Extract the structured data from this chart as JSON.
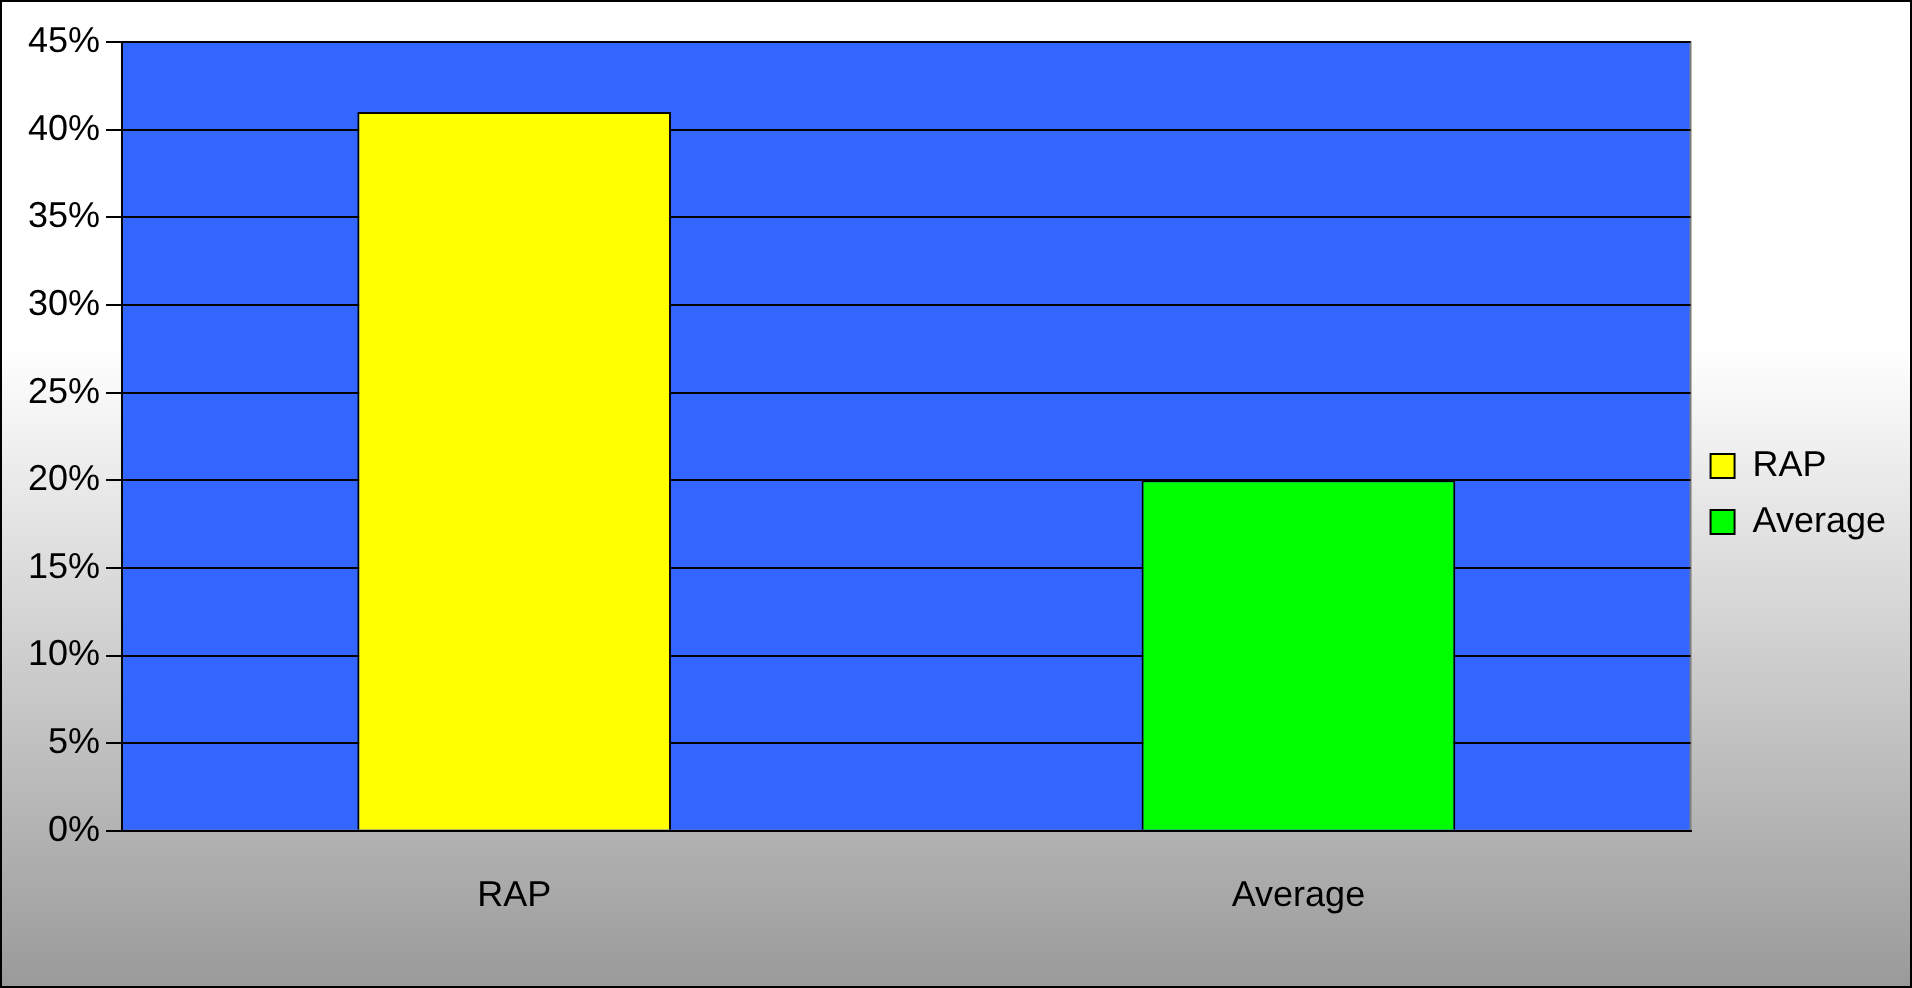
{
  "chart_data": {
    "type": "bar",
    "categories": [
      "RAP",
      "Average"
    ],
    "series": [
      {
        "name": "RAP",
        "color": "#ffff00",
        "values": [
          41,
          null
        ]
      },
      {
        "name": "Average",
        "color": "#00ff00",
        "values": [
          null,
          20
        ]
      }
    ],
    "ylim": [
      0,
      45
    ],
    "yticks": [
      {
        "value": 0,
        "label": "0%"
      },
      {
        "value": 5,
        "label": "5%"
      },
      {
        "value": 10,
        "label": "10%"
      },
      {
        "value": 15,
        "label": "15%"
      },
      {
        "value": 20,
        "label": "20%"
      },
      {
        "value": 25,
        "label": "25%"
      },
      {
        "value": 30,
        "label": "30%"
      },
      {
        "value": 35,
        "label": "35%"
      },
      {
        "value": 40,
        "label": "40%"
      },
      {
        "value": 45,
        "label": "45%"
      }
    ],
    "grid": "y",
    "legend": "right"
  }
}
